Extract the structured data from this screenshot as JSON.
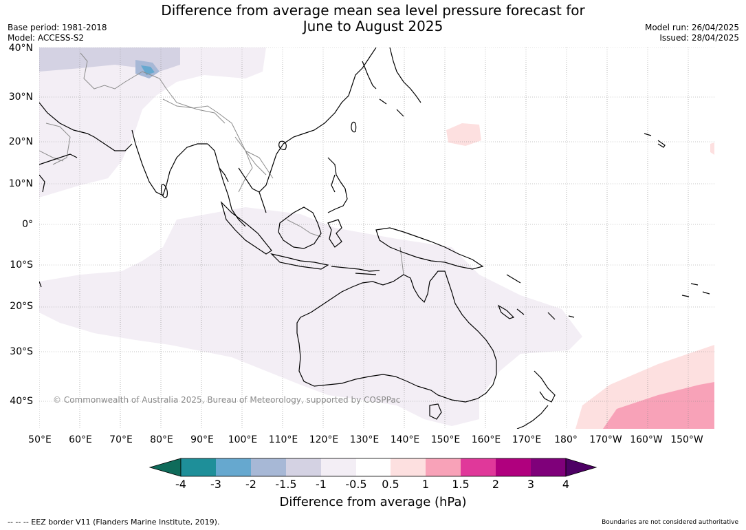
{
  "title": "Difference from average mean sea level pressure forecast for\nJune to August 2025",
  "meta_left": [
    "Base period: 1981-2018",
    "Model: ACCESS-S2"
  ],
  "meta_right": [
    "Model run: 26/04/2025",
    "Issued: 28/04/2025"
  ],
  "map": {
    "lat_labels": [
      "40°N",
      "30°N",
      "20°N",
      "10°N",
      "0°",
      "10°S",
      "20°S",
      "30°S",
      "40°S"
    ],
    "lon_labels": [
      "50°E",
      "60°E",
      "70°E",
      "80°E",
      "90°E",
      "100°E",
      "110°E",
      "120°E",
      "130°E",
      "140°E",
      "150°E",
      "160°E",
      "170°E",
      "180°",
      "170°W",
      "160°W",
      "150°W"
    ],
    "copyright": "© Commonwealth of Australia 2025, Bureau of Meteorology, supported by COSPPac"
  },
  "colorbar": {
    "title": "Difference from average (hPa)",
    "tick_labels": [
      "-4",
      "-3",
      "-2",
      "-1.5",
      "-1",
      "-0.5",
      "0.5",
      "1",
      "1.5",
      "2",
      "3",
      "4"
    ],
    "colors": [
      "#0f6b5a",
      "#1e8f99",
      "#66a8cf",
      "#a7b8d6",
      "#d4d2e3",
      "#f3eef5",
      "#ffffff",
      "#fde0e0",
      "#f8a2b8",
      "#e0389a",
      "#b0007e",
      "#7f007a",
      "#4d0064"
    ]
  },
  "footer": {
    "left": "--  --  -- EEZ border V11 (Flanders Marine Institute, 2019).",
    "right": "Boundaries are not considered authoritative"
  }
}
